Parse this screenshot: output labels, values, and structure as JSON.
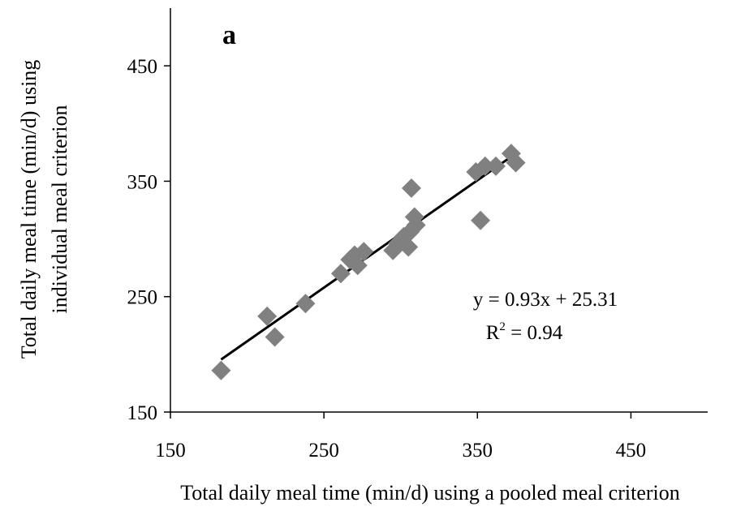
{
  "chart_data": {
    "type": "scatter",
    "panel_label": "a",
    "xlabel": "Total daily meal time (min/d) using a pooled meal criterion",
    "ylabel_line1": "Total daily meal time (min/d) using",
    "ylabel_line2": "individual meal criterion",
    "xlim": [
      150,
      500
    ],
    "ylim": [
      150,
      500
    ],
    "x_ticks": [
      150,
      250,
      350,
      450
    ],
    "y_ticks": [
      150,
      250,
      350,
      450
    ],
    "grid": false,
    "marker": "diamond",
    "marker_color": "#808080",
    "line_color": "#000000",
    "points": [
      {
        "x": 183,
        "y": 186
      },
      {
        "x": 213,
        "y": 233
      },
      {
        "x": 218,
        "y": 215
      },
      {
        "x": 238,
        "y": 244
      },
      {
        "x": 261,
        "y": 270
      },
      {
        "x": 267,
        "y": 282
      },
      {
        "x": 270,
        "y": 286
      },
      {
        "x": 272,
        "y": 277
      },
      {
        "x": 276,
        "y": 289
      },
      {
        "x": 295,
        "y": 290
      },
      {
        "x": 298,
        "y": 296
      },
      {
        "x": 302,
        "y": 302
      },
      {
        "x": 305,
        "y": 293
      },
      {
        "x": 306,
        "y": 306
      },
      {
        "x": 307,
        "y": 344
      },
      {
        "x": 309,
        "y": 319
      },
      {
        "x": 310,
        "y": 312
      },
      {
        "x": 349,
        "y": 358
      },
      {
        "x": 352,
        "y": 316
      },
      {
        "x": 355,
        "y": 363
      },
      {
        "x": 362,
        "y": 363
      },
      {
        "x": 372,
        "y": 374
      },
      {
        "x": 375,
        "y": 366
      }
    ],
    "trendline": {
      "slope": 0.93,
      "intercept": 25.31,
      "x_range": [
        183,
        375
      ],
      "equation_text": "y = 0.93x + 25.31",
      "r2_prefix": "R",
      "r2_sup": "2",
      "r2_suffix": " = 0.94"
    }
  }
}
